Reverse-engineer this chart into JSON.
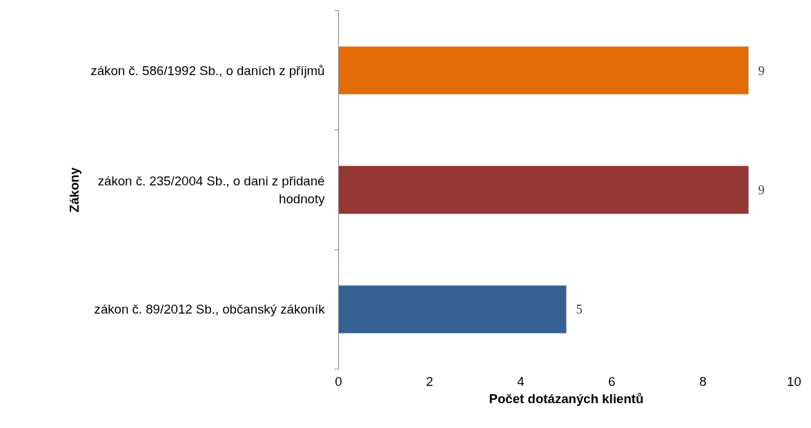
{
  "chart_data": {
    "type": "bar",
    "orientation": "horizontal",
    "xlabel": "Počet dotázaných klientů",
    "ylabel": "Zákony",
    "categories": [
      "zákon č. 586/1992 Sb., o daních z příjmů",
      "zákon č. 235/2004 Sb., o dani z přidané hodnoty",
      "zákon č. 89/2012 Sb., občanský zákoník"
    ],
    "values": [
      9,
      9,
      5
    ],
    "colors": [
      "#e36c0a",
      "#953735",
      "#376092"
    ],
    "xlim": [
      0,
      10
    ],
    "xticks": [
      0,
      2,
      4,
      6,
      8,
      10
    ],
    "grid": false,
    "data_labels": true
  }
}
